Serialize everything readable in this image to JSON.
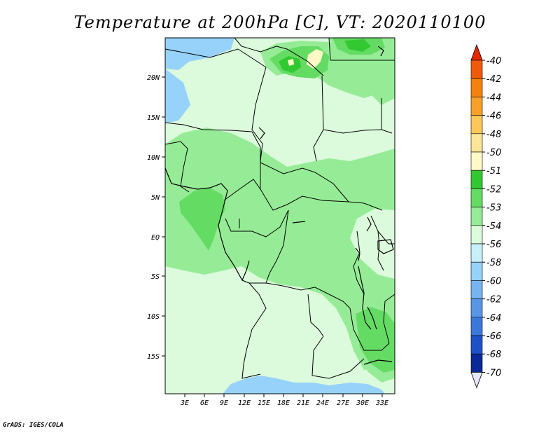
{
  "title": "Temperature at 200hPa [C], VT: 2020110100",
  "credit": "GrADS: IGES/COLA",
  "map": {
    "lat_labels": [
      "20N",
      "15N",
      "10N",
      "5N",
      "EQ",
      "5S",
      "10S",
      "15S"
    ],
    "lon_labels": [
      "3E",
      "6E",
      "9E",
      "12E",
      "15E",
      "18E",
      "21E",
      "24E",
      "27E",
      "30E",
      "33E"
    ]
  },
  "colorbar": {
    "labels": [
      "-40",
      "-42",
      "-44",
      "-46",
      "-48",
      "-50",
      "-51",
      "-52",
      "-53",
      "-54",
      "-56",
      "-58",
      "-60",
      "-62",
      "-64",
      "-66",
      "-68",
      "-70"
    ],
    "colors": [
      "#e62800",
      "#f05a0a",
      "#f5820f",
      "#f7a028",
      "#fac85a",
      "#fae696",
      "#fffac8",
      "#32c832",
      "#64dc64",
      "#96ec96",
      "#dcfadc",
      "#c8f0fa",
      "#96d2fa",
      "#78b4f0",
      "#5a96e6",
      "#3c78dc",
      "#1e50c8",
      "#0a2896",
      "#000a64"
    ],
    "top_arrow_color": "#e62800",
    "bottom_arrow_color": "#e6e6fa"
  },
  "colors": {
    "background_field": "#dcfadc",
    "green_light": "#96ec96",
    "green_mid": "#64dc64",
    "green_dark": "#32c832",
    "blue_light": "#96d2fa",
    "yellow": "#fffac8"
  }
}
